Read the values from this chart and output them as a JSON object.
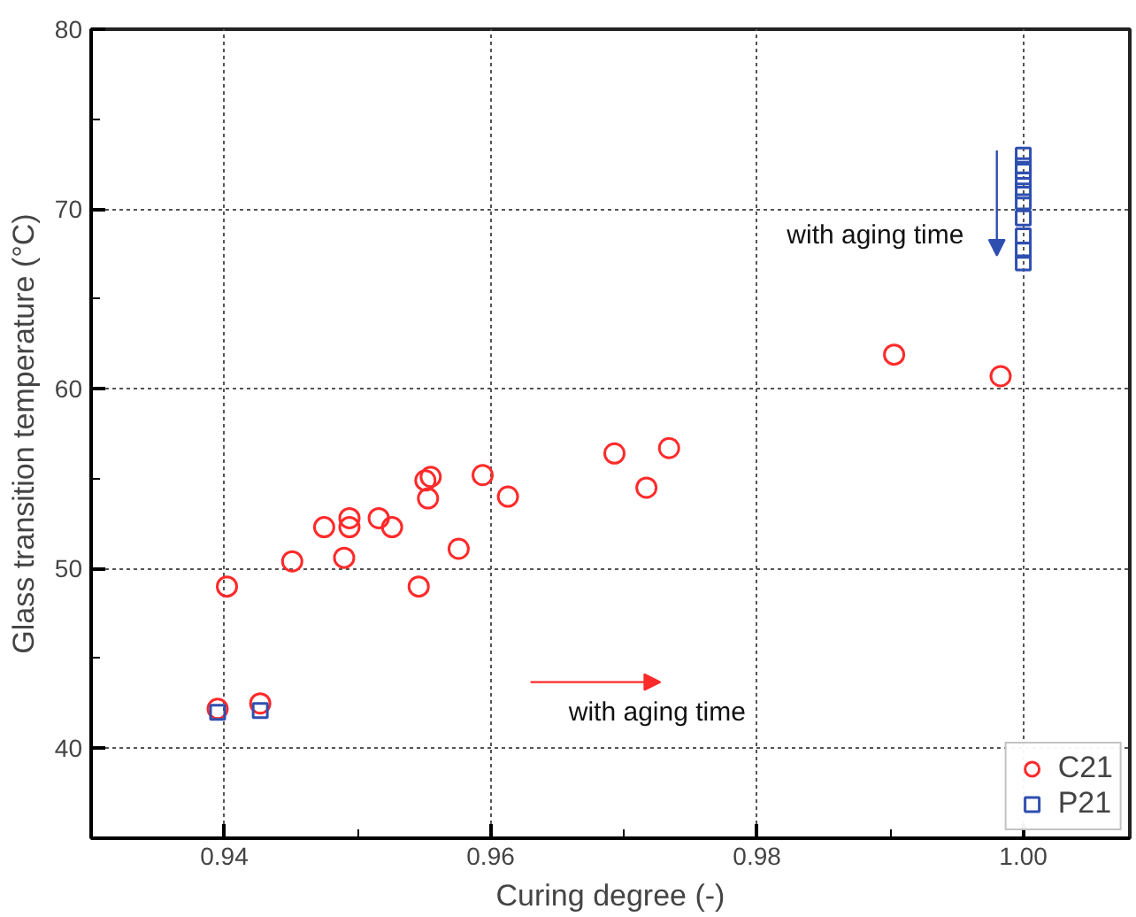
{
  "chart_data": {
    "type": "scatter",
    "xlabel": "Curing degree (-)",
    "ylabel": "Glass transition temperature (°C)",
    "xlim": [
      0.93,
      1.008
    ],
    "ylim": [
      35,
      80
    ],
    "xticks": [
      {
        "value": 0.94,
        "label": "0.94"
      },
      {
        "value": 0.96,
        "label": "0.96"
      },
      {
        "value": 0.98,
        "label": "0.98"
      },
      {
        "value": 1.0,
        "label": "1.00"
      }
    ],
    "yticks": [
      40,
      50,
      60,
      70,
      80
    ],
    "grid": true,
    "legend": "bottom right",
    "annotations": [
      "with aging time",
      "with aging time"
    ],
    "series": [
      {
        "name": "C21",
        "color": "#ff2a2a",
        "marker": "circle",
        "x": [
          0.9395,
          0.9427,
          0.9402,
          0.9451,
          0.9475,
          0.9494,
          0.9494,
          0.949,
          0.9516,
          0.9526,
          0.9546,
          0.9551,
          0.9555,
          0.9553,
          0.9576,
          0.9594,
          0.9613,
          0.9693,
          0.9734,
          0.9717,
          0.9903,
          0.9983
        ],
        "values": [
          42.2,
          42.5,
          49.0,
          50.4,
          52.3,
          52.8,
          52.3,
          50.6,
          52.8,
          52.3,
          49.0,
          54.9,
          55.1,
          53.9,
          51.1,
          55.2,
          54.0,
          56.4,
          56.7,
          54.5,
          61.9,
          60.7
        ]
      },
      {
        "name": "P21",
        "color": "#2f4fb0",
        "marker": "square",
        "x": [
          0.9395,
          0.9427,
          1.0,
          1.0,
          1.0,
          1.0,
          1.0,
          1.0,
          1.0,
          1.0,
          1.0,
          1.0
        ],
        "values": [
          42.0,
          42.1,
          73.0,
          72.4,
          72.1,
          71.6,
          71.0,
          70.4,
          69.5,
          68.5,
          67.7,
          67.0
        ]
      }
    ]
  }
}
